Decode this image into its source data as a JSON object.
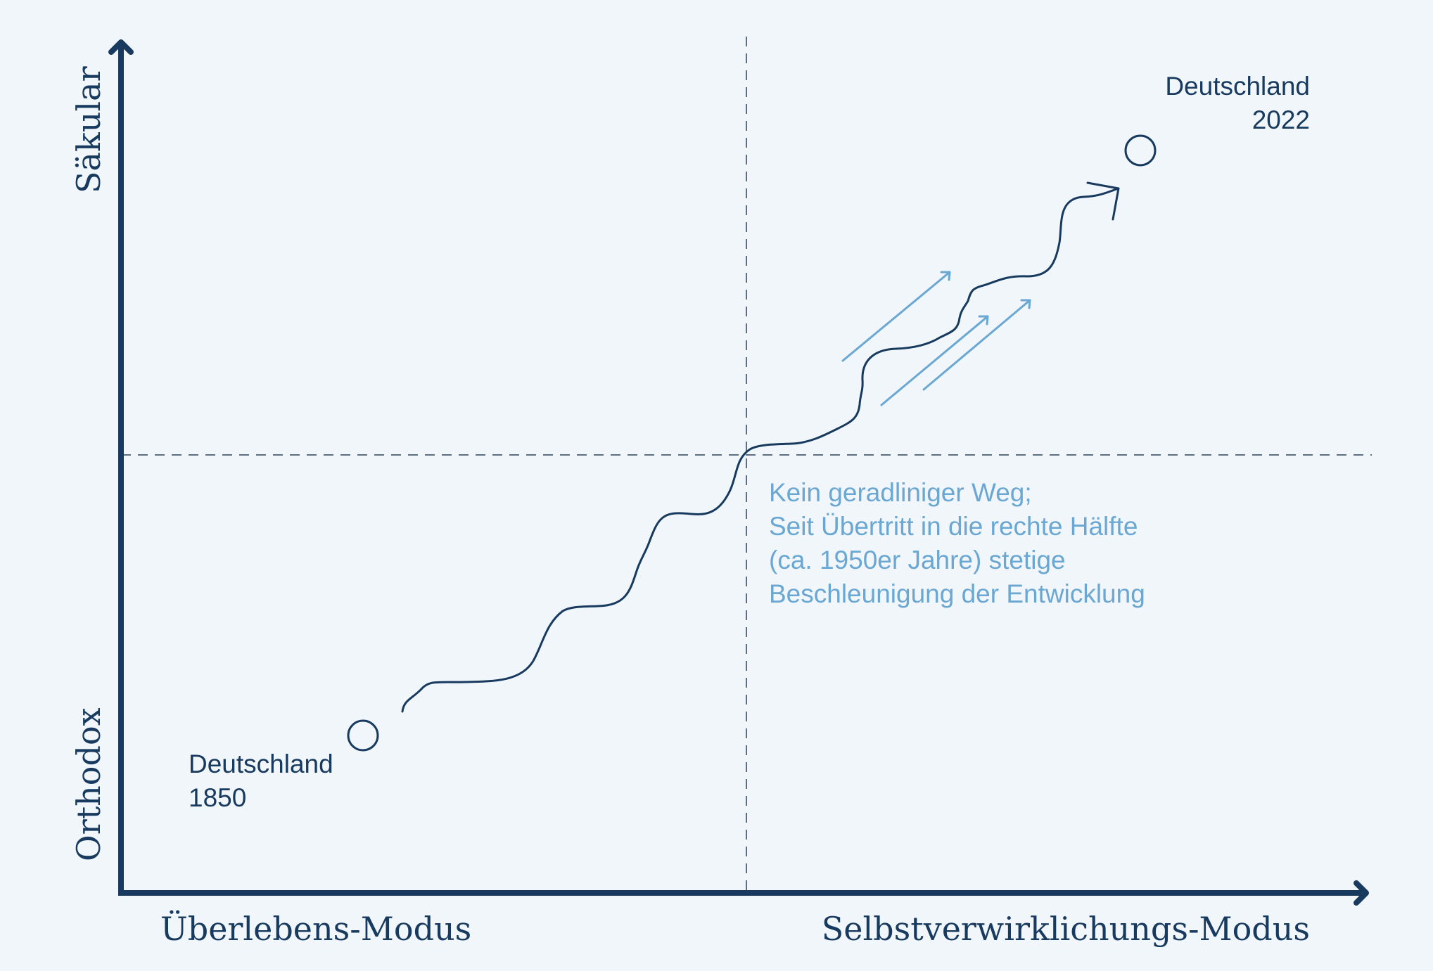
{
  "colors": {
    "background": "#f1f6fb",
    "primary": "#173a5e",
    "accent": "#6aa7d2",
    "guide": "#5d6f80"
  },
  "axes": {
    "y_top_label": "Säkular",
    "y_bottom_label": "Orthodox",
    "x_left_label": "Überlebens-Modus",
    "x_right_label": "Selbstverwirklichungs-Modus"
  },
  "points": {
    "start": {
      "line1": "Deutschland",
      "line2": "1850"
    },
    "end": {
      "line1": "Deutschland",
      "line2": "2022"
    }
  },
  "annotation": {
    "lines": [
      "Kein geradliniger Weg;",
      "Seit Übertritt in die rechte Hälfte",
      "(ca. 1950er Jahre) stetige",
      "Beschleunigung der Entwicklung"
    ]
  }
}
